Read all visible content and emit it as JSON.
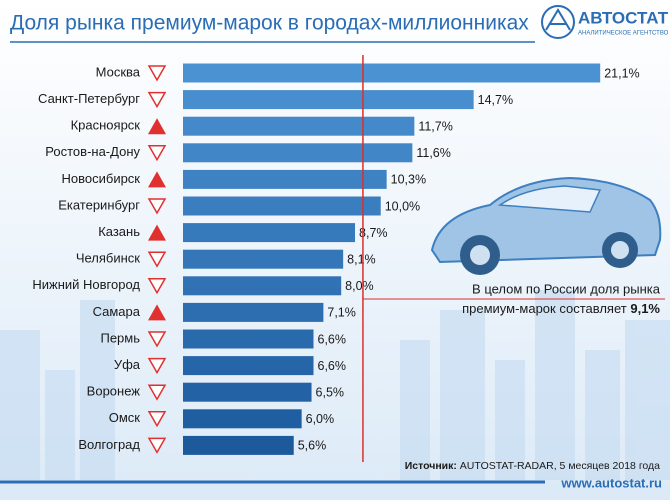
{
  "chart_data": {
    "type": "bar",
    "orientation": "horizontal",
    "title": "Доля рынка премиум-марок в городах-миллионниках",
    "logo": {
      "name": "АВТОСТАТ",
      "tagline": "АНАЛИТИЧЕСКОЕ АГЕНТСТВО"
    },
    "categories": [
      "Москва",
      "Санкт-Петербург",
      "Красноярск",
      "Ростов-на-Дону",
      "Новосибирск",
      "Екатеринбург",
      "Казань",
      "Челябинск",
      "Нижний Новгород",
      "Самара",
      "Пермь",
      "Уфа",
      "Воронеж",
      "Омск",
      "Волгоград"
    ],
    "values": [
      21.1,
      14.7,
      11.7,
      11.6,
      10.3,
      10.0,
      8.7,
      8.1,
      8.0,
      7.1,
      6.6,
      6.6,
      6.5,
      6.0,
      5.6
    ],
    "value_labels": [
      "21,1%",
      "14,7%",
      "11,7%",
      "11,6%",
      "10,3%",
      "10,0%",
      "8,7%",
      "8,1%",
      "8,0%",
      "7,1%",
      "6,6%",
      "6,6%",
      "6,5%",
      "6,0%",
      "5,6%"
    ],
    "trends": [
      "down",
      "down",
      "up",
      "down",
      "up",
      "down",
      "up",
      "down",
      "down",
      "up",
      "down",
      "down",
      "down",
      "down",
      "down"
    ],
    "colors": [
      "#4b92d3",
      "#1c5a9c"
    ],
    "trend_color": "#e0312f",
    "xlim": [
      0,
      22
    ],
    "reference": {
      "value": 9.1,
      "label": "9,1%",
      "color": "#d9302c"
    },
    "annotation": [
      "В целом по России доля рынка",
      "премиум-марок составляет"
    ],
    "source_label": "Источник:",
    "source": "AUTOSTAT-RADAR, 5 месяцев 2018 года",
    "website": "www.autostat.ru"
  }
}
